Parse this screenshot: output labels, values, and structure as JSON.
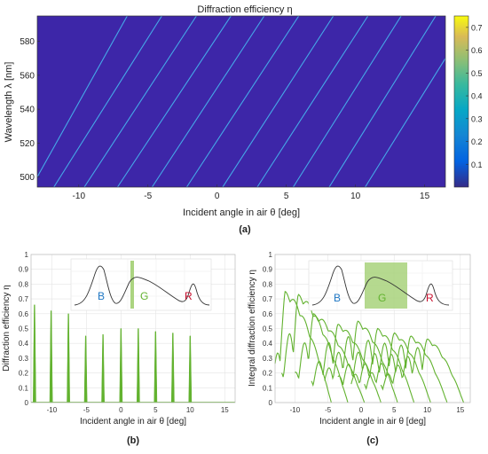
{
  "figure_labels": {
    "a": "(a)",
    "b": "(b)",
    "c": "(c)"
  },
  "colors": {
    "heat_bg": "#3d26a8",
    "heat_line": "#46b8f0",
    "green": "#62b22f",
    "green_fill": "#9ccc6a",
    "blue": "#1f77c4",
    "red": "#c8102e"
  },
  "chart_data": [
    {
      "id": "a",
      "type": "heatmap",
      "title": "Diffraction efficiency η",
      "xlabel": "Incident angle in air θ [deg]",
      "ylabel": "Wavelength λ [nm]",
      "xlim": [
        -13,
        16.5
      ],
      "ylim": [
        494,
        595
      ],
      "xticks": [
        "-10",
        "-5",
        "0",
        "5",
        "10",
        "15"
      ],
      "xtick_values": [
        -10,
        -5,
        0,
        5,
        10,
        15
      ],
      "yticks": [
        "500",
        "520",
        "540",
        "560",
        "580"
      ],
      "ytick_values": [
        500,
        520,
        540,
        560,
        580
      ],
      "colorbar": {
        "ticks": [
          "0.1",
          "0.2",
          "0.3",
          "0.4",
          "0.5",
          "0.6",
          "0.7"
        ],
        "tick_values": [
          0.1,
          0.2,
          0.3,
          0.4,
          0.5,
          0.6,
          0.7
        ],
        "range": [
          0,
          0.75
        ]
      },
      "lines": [
        {
          "x0": -13,
          "y0": 500,
          "x1": -6.5,
          "y1": 595
        },
        {
          "x0": -11.8,
          "y0": 494,
          "x1": -4,
          "y1": 595
        },
        {
          "x0": -9.6,
          "y0": 494,
          "x1": -1.5,
          "y1": 595
        },
        {
          "x0": -7.2,
          "y0": 494,
          "x1": 1,
          "y1": 595
        },
        {
          "x0": -4.7,
          "y0": 494,
          "x1": 3.4,
          "y1": 595
        },
        {
          "x0": -2.2,
          "y0": 494,
          "x1": 5.9,
          "y1": 595
        },
        {
          "x0": 0.4,
          "y0": 494,
          "x1": 8.4,
          "y1": 595
        },
        {
          "x0": 2.9,
          "y0": 494,
          "x1": 10.9,
          "y1": 595
        },
        {
          "x0": 5.5,
          "y0": 494,
          "x1": 13.3,
          "y1": 595
        },
        {
          "x0": 8.1,
          "y0": 494,
          "x1": 15.8,
          "y1": 595
        },
        {
          "x0": 10.7,
          "y0": 494,
          "x1": 16.5,
          "y1": 570
        }
      ]
    },
    {
      "id": "b",
      "type": "bar",
      "xlabel": "Incident angle in air θ [deg]",
      "ylabel": "Diffraction efficiency η",
      "xlim": [
        -13,
        16.5
      ],
      "ylim": [
        0,
        1
      ],
      "xticks": [
        "-10",
        "-5",
        "0",
        "5",
        "10",
        "15"
      ],
      "xtick_values": [
        -10,
        -5,
        0,
        5,
        10,
        15
      ],
      "yticks": [
        "0",
        "0.1",
        "0.2",
        "0.3",
        "0.4",
        "0.5",
        "0.6",
        "0.7",
        "0.8",
        "0.9",
        "1"
      ],
      "ytick_values": [
        0,
        0.1,
        0.2,
        0.3,
        0.4,
        0.5,
        0.6,
        0.7,
        0.8,
        0.9,
        1
      ],
      "x": [
        -12.5,
        -10.1,
        -7.6,
        -5.1,
        -2.6,
        0,
        2.5,
        5,
        7.5,
        10
      ],
      "values": [
        0.66,
        0.62,
        0.6,
        0.45,
        0.46,
        0.5,
        0.5,
        0.48,
        0.47,
        0.45
      ],
      "inset": {
        "labels": [
          "B",
          "G",
          "R"
        ]
      }
    },
    {
      "id": "c",
      "type": "line",
      "xlabel": "Incident angle in air θ [deg]",
      "ylabel": "Integral diffraction efficiency η",
      "xlim": [
        -13,
        16.5
      ],
      "ylim": [
        0,
        1
      ],
      "xticks": [
        "-10",
        "-5",
        "0",
        "5",
        "10",
        "15"
      ],
      "xtick_values": [
        -10,
        -5,
        0,
        5,
        10,
        15
      ],
      "yticks": [
        "0",
        "0.1",
        "0.2",
        "0.3",
        "0.4",
        "0.5",
        "0.6",
        "0.7",
        "0.8",
        "0.9",
        "1"
      ],
      "ytick_values": [
        0,
        0.1,
        0.2,
        0.3,
        0.4,
        0.5,
        0.6,
        0.7,
        0.8,
        0.9,
        1
      ],
      "series_envelopes": [
        {
          "start": -13,
          "peak_x": -11.5,
          "peak": 0.75,
          "end": -4.5
        },
        {
          "start": -12,
          "peak_x": -9.5,
          "peak": 0.73,
          "end": -2
        },
        {
          "start": -10,
          "peak_x": -7.2,
          "peak": 0.6,
          "end": 0.5
        },
        {
          "start": -7.5,
          "peak_x": -3.5,
          "peak": 0.53,
          "end": 3
        },
        {
          "start": -5.5,
          "peak_x": -0.5,
          "peak": 0.55,
          "end": 5.5
        },
        {
          "start": -3.5,
          "peak_x": 2.5,
          "peak": 0.5,
          "end": 8
        },
        {
          "start": -1.5,
          "peak_x": 5,
          "peak": 0.47,
          "end": 10.5
        },
        {
          "start": 0.5,
          "peak_x": 7.5,
          "peak": 0.45,
          "end": 13
        },
        {
          "start": 3,
          "peak_x": 10,
          "peak": 0.43,
          "end": 15.5
        }
      ],
      "inset": {
        "labels": [
          "B",
          "G",
          "R"
        ]
      }
    }
  ]
}
